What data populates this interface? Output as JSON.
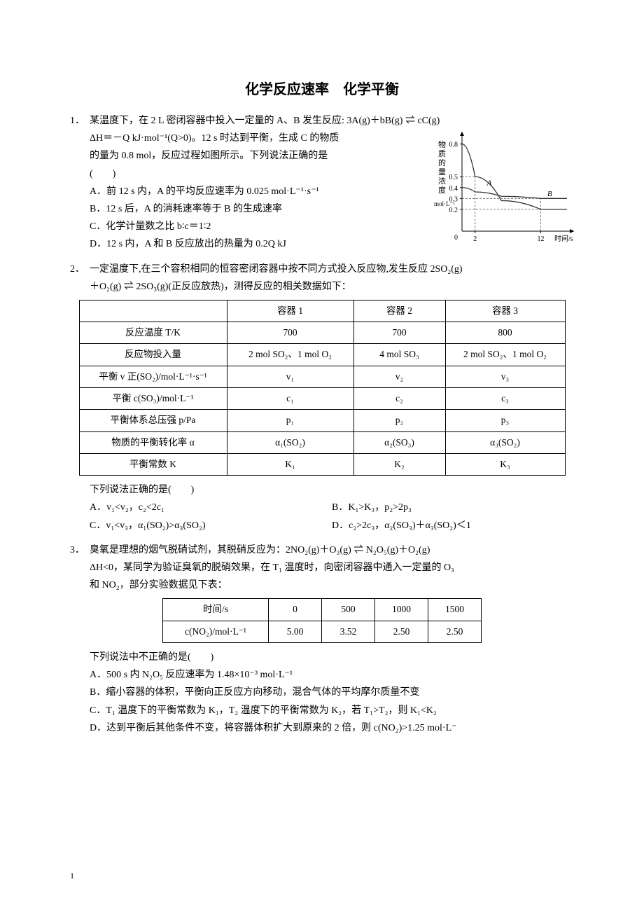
{
  "title": "化学反应速率　化学平衡",
  "q1": {
    "num": "1．",
    "stem_line1": "某温度下，在 2 L 密闭容器中投入一定量的 A、B 发生反应: 3A(g)＋bB(g) ⇌ cC(g)",
    "stem_line2": "ΔH＝－Q kJ·mol⁻¹(Q>0)。12 s 时达到平衡，生成 C 的物质",
    "stem_line3": "的量为 0.8 mol，反应过程如图所示。下列说法正确的是",
    "stem_line4": "(　　)",
    "A": "A．前 12 s 内，A 的平均反应速率为 0.025 mol·L⁻¹·s⁻¹",
    "B": "B．12 s 后，A 的消耗速率等于 B 的生成速率",
    "C": "C．化学计量数之比 b∶c＝1∶2",
    "D": "D．12 s 内，A 和 B 反应放出的热量为 0.2Q kJ",
    "graph": {
      "ylabel": "物质的量浓度",
      "yunit": "mol·L⁻¹",
      "xlabel": "时间/s",
      "yticks": [
        0.2,
        0.3,
        0.4,
        0.5,
        0.8
      ],
      "xticks": [
        2,
        12
      ],
      "curveA_label": "A",
      "curveB_label": "B",
      "axis_color": "#000000",
      "grid_style": "dashed",
      "line_color": "#333333",
      "curveA": [
        [
          0,
          0.8
        ],
        [
          2,
          0.5
        ],
        [
          6,
          0.28
        ],
        [
          12,
          0.2
        ],
        [
          16,
          0.2
        ]
      ],
      "curveB": [
        [
          0,
          0.4
        ],
        [
          2,
          0.36
        ],
        [
          6,
          0.32
        ],
        [
          12,
          0.3
        ],
        [
          16,
          0.3
        ]
      ]
    }
  },
  "q2": {
    "num": "2．",
    "stem_line1": "一定温度下,在三个容积相同的恒容密闭容器中按不同方式投入反应物,发生反应 2SO₂(g)",
    "stem_line2": "＋O₂(g) ⇌ 2SO₃(g)(正反应放热)，测得反应的相关数据如下：",
    "table": {
      "headers": [
        "",
        "容器 1",
        "容器 2",
        "容器 3"
      ],
      "rows": [
        [
          "反应温度 T/K",
          "700",
          "700",
          "800"
        ],
        [
          "反应物投入量",
          "2 mol SO₂、1 mol O₂",
          "4 mol SO₃",
          "2 mol SO₂、1 mol O₂"
        ],
        [
          "平衡 v 正(SO₂)/mol·L⁻¹·s⁻¹",
          "v₁",
          "v₂",
          "v₃"
        ],
        [
          "平衡 c(SO₃)/mol·L⁻¹",
          "c₁",
          "c₂",
          "c₃"
        ],
        [
          "平衡体系总压强 p/Pa",
          "p₁",
          "p₂",
          "p₃"
        ],
        [
          "物质的平衡转化率 α",
          "α₁(SO₂)",
          "α₂(SO₃)",
          "α₃(SO₂)"
        ],
        [
          "平衡常数 K",
          "K₁",
          "K₂",
          "K₃"
        ]
      ],
      "col_widths": [
        "190px",
        "160px",
        "110px",
        "150px"
      ]
    },
    "follow": "下列说法正确的是(　　)",
    "A": "A．v₁<v₂，c₂<2c₁",
    "B": "B．K₁>K₃，p₂>2p₃",
    "C": "C．v₁<v₃，α₁(SO₂)>α₃(SO₂)",
    "D": "D．c₂>2c₃，α₂(SO₃)＋α₃(SO₂)＜1"
  },
  "q3": {
    "num": "3．",
    "stem_line1": "臭氧是理想的烟气脱硝试剂，其脱硝反应为：2NO₂(g)＋O₃(g) ⇌ N₂O₅(g)＋O₂(g)",
    "stem_line2": "ΔH<0，某同学为验证臭氧的脱硝效果，在 T₁ 温度时，向密闭容器中通入一定量的 O₃",
    "stem_line3": "和 NO₂，部分实验数据见下表：",
    "table": {
      "headers": [
        "时间/s",
        "0",
        "500",
        "1000",
        "1500"
      ],
      "row_label": "c(NO₂)/mol·L⁻¹",
      "row": [
        "5.00",
        "3.52",
        "2.50",
        "2.50"
      ],
      "col_widths": [
        "130px",
        "55px",
        "55px",
        "55px",
        "55px"
      ]
    },
    "follow": "下列说法中不正确的是(　　)",
    "A": "A．500 s 内 N₂O₅ 反应速率为 1.48×10⁻³ mol·L⁻¹",
    "B": "B．缩小容器的体积，平衡向正反应方向移动，混合气体的平均摩尔质量不变",
    "C": "C．T₁ 温度下的平衡常数为 K₁，T₂ 温度下的平衡常数为 K₂，若 T₁>T₂，则 K₁<K₂",
    "D": "D．达到平衡后其他条件不变，将容器体积扩大到原来的 2 倍，则 c(NO₂)>1.25 mol·L⁻"
  },
  "page_number": "1"
}
